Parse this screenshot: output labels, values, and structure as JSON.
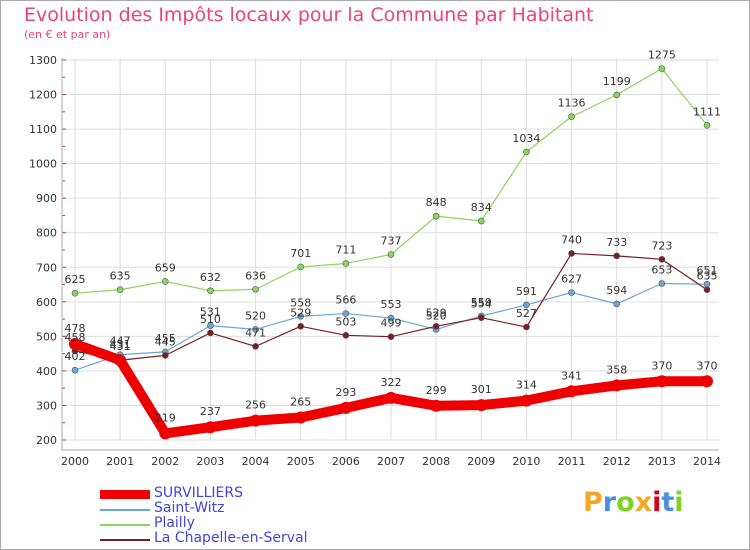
{
  "title": "Evolution des Impôts locaux pour la Commune par Habitant",
  "subtitle": "(en € et par an)",
  "logo": {
    "letters": [
      "P",
      "r",
      "o",
      "x",
      "i",
      "t",
      "i"
    ],
    "colors": [
      "#f5a623",
      "#4a90e2",
      "#7ed321",
      "#f5a623",
      "#d0021b",
      "#4a90e2",
      "#7ed321"
    ]
  },
  "chart_data": {
    "type": "line",
    "x": [
      2000,
      2001,
      2002,
      2003,
      2004,
      2005,
      2006,
      2007,
      2008,
      2009,
      2010,
      2011,
      2012,
      2013,
      2014
    ],
    "ylim": [
      200,
      1300
    ],
    "yticks": [
      200,
      300,
      400,
      500,
      600,
      700,
      800,
      900,
      1000,
      1100,
      1200,
      1300
    ],
    "grid": true,
    "legend_position": "bottom-left",
    "series": [
      {
        "name": "Plailly",
        "color": "#88d65c",
        "values": [
          625,
          635,
          659,
          632,
          636,
          701,
          711,
          737,
          848,
          834,
          1034,
          1136,
          1199,
          1275,
          1111
        ]
      },
      {
        "name": "Saint-Witz",
        "color": "#6aa7d6",
        "values": [
          402,
          447,
          455,
          531,
          520,
          558,
          566,
          553,
          520,
          559,
          591,
          627,
          594,
          653,
          651
        ]
      },
      {
        "name": "La Chapelle-en-Serval",
        "color": "#7a1e24",
        "values": [
          458,
          431,
          445,
          510,
          471,
          529,
          503,
          499,
          529,
          554,
          527,
          740,
          733,
          723,
          635
        ]
      },
      {
        "name": "SURVILLIERS",
        "color": "#ee0000",
        "values": [
          478,
          431,
          219,
          237,
          256,
          265,
          293,
          322,
          299,
          301,
          314,
          341,
          358,
          370,
          370
        ]
      }
    ],
    "legend_order": [
      "SURVILLIERS",
      "Saint-Witz",
      "Plailly",
      "La Chapelle-en-Serval"
    ]
  }
}
